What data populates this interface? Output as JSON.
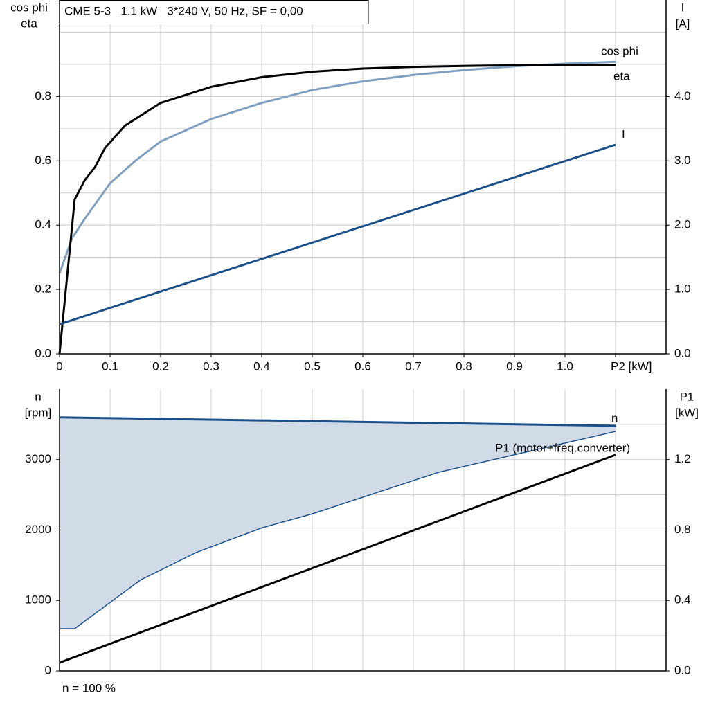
{
  "chart_data": [
    {
      "type": "line",
      "title": "CME 5-3   1.1 kW   3*240 V, 50 Hz, SF = 0,00",
      "ylabel": [
        "cos phi",
        "eta"
      ],
      "y2label": [
        "I",
        "[A]"
      ],
      "xlim": [
        0,
        1.2
      ],
      "xticks": [
        0,
        0.1,
        0.2,
        0.3,
        0.4,
        0.5,
        0.6,
        0.7,
        0.8,
        0.9,
        {
          "value": 1,
          "label": "1.0"
        },
        {
          "value": 1.1,
          "label": "P2 [kW]"
        }
      ],
      "ylim": [
        0,
        1.1
      ],
      "yticks": [
        {
          "value": 0,
          "label": "0.0"
        },
        0.2,
        0.4,
        0.6,
        0.8
      ],
      "ygrid": [
        0.1,
        0.2,
        0.3,
        0.4,
        0.5,
        0.6,
        0.7,
        0.8,
        0.9,
        1
      ],
      "y2lim": [
        0,
        5.5
      ],
      "y2ticks": [
        {
          "value": 0,
          "label": "0.0"
        },
        {
          "value": 1,
          "label": "1.0"
        },
        {
          "value": 2,
          "label": "2.0"
        },
        {
          "value": 3,
          "label": "3.0"
        },
        {
          "value": 4,
          "label": "4.0"
        }
      ],
      "grid": true,
      "series": [
        {
          "name": "cos phi",
          "color": "#7f9fc0",
          "x": [
            0,
            0.025,
            0.05,
            0.1,
            0.15,
            0.2,
            0.3,
            0.4,
            0.5,
            0.6,
            0.7,
            0.8,
            0.9,
            1.0,
            1.1
          ],
          "values": [
            0.25,
            0.36,
            0.42,
            0.53,
            0.6,
            0.66,
            0.73,
            0.78,
            0.82,
            0.847,
            0.867,
            0.882,
            0.894,
            0.902,
            0.908
          ]
        },
        {
          "name": "eta",
          "color": "#000000",
          "x": [
            0,
            0.03,
            0.05,
            0.07,
            0.09,
            0.13,
            0.2,
            0.3,
            0.4,
            0.5,
            0.6,
            0.7,
            0.8,
            0.9,
            1.0,
            1.1
          ],
          "values": [
            0,
            0.48,
            0.54,
            0.58,
            0.64,
            0.71,
            0.78,
            0.83,
            0.86,
            0.877,
            0.887,
            0.892,
            0.895,
            0.897,
            0.898,
            0.898
          ]
        },
        {
          "name": "I",
          "color": "#1b4f88",
          "axis": "y2",
          "x": [
            0,
            1.1
          ],
          "values": [
            0.46,
            3.25
          ]
        }
      ]
    },
    {
      "type": "line",
      "ylabel": [
        "n",
        "[rpm]"
      ],
      "y2label": [
        "P1",
        "[kW]"
      ],
      "note": "n = 100 %",
      "xlim": [
        0,
        1.2
      ],
      "xgrid": [
        0.1,
        0.2,
        0.3,
        0.4,
        0.5,
        0.6,
        0.7,
        0.8,
        0.9,
        1,
        1.1
      ],
      "ylim": [
        0,
        4000
      ],
      "yticks": [
        0,
        1000,
        2000,
        3000
      ],
      "ygrid": [
        500,
        1000,
        1500,
        2000,
        2500,
        3000,
        3500
      ],
      "y2lim": [
        0,
        1.6
      ],
      "y2ticks": [
        {
          "value": 0,
          "label": "0.0"
        },
        0.4,
        0.8,
        1.2
      ],
      "grid": true,
      "series": [
        {
          "name": "n",
          "color": "#1b4f88",
          "x": [
            0,
            1.1
          ],
          "values": [
            3600,
            3480
          ]
        },
        {
          "color": "#1b4f88",
          "fill": "#d0dbe7",
          "fill_to": 0,
          "x": [
            0,
            0.03,
            0.16,
            0.27,
            0.4,
            0.5,
            0.75,
            1.1
          ],
          "values": [
            600,
            600,
            1290,
            1680,
            2030,
            2230,
            2820,
            3400
          ]
        },
        {
          "name": "P1 (motor+freq.converter)",
          "color": "#000000",
          "axis": "y2",
          "x": [
            0,
            1.1
          ],
          "values": [
            0.047,
            1.227
          ]
        }
      ]
    }
  ]
}
